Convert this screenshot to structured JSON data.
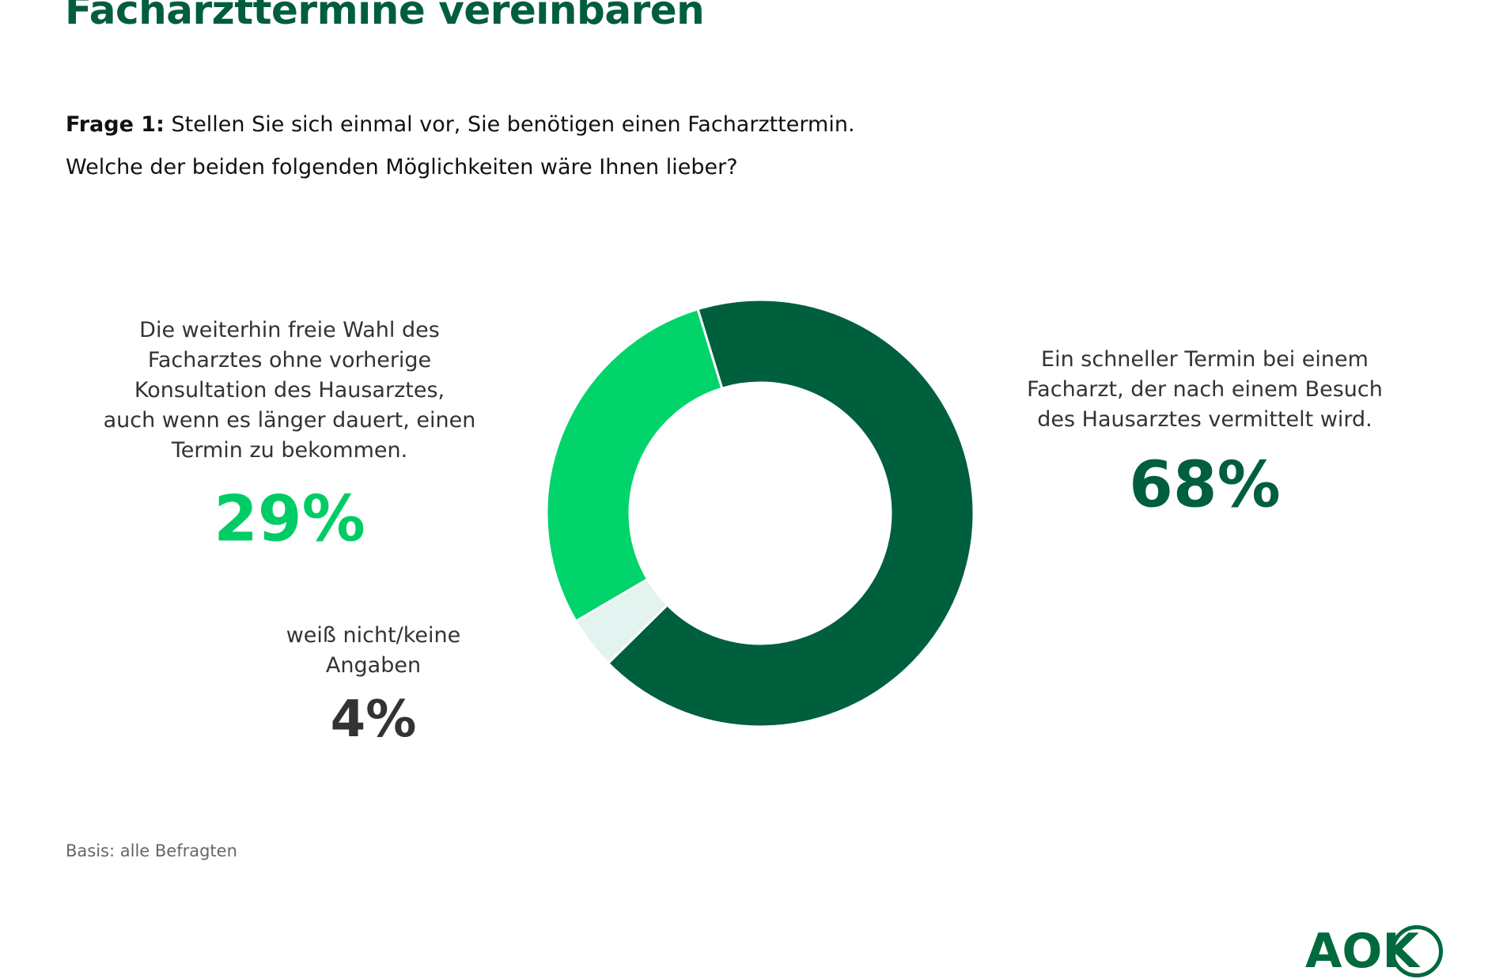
{
  "title": "Facharzttermine vereinbaren",
  "question": {
    "label": "Frage 1:",
    "line1": "Stellen Sie sich einmal vor, Sie benötigen einen Facharzttermin.",
    "line2": "Welche der beiden folgenden Möglichkeiten wäre Ihnen lieber?"
  },
  "footnote": "Basis: alle Befragten",
  "logo": "AOK",
  "chart_data": {
    "type": "pie",
    "variant": "donut",
    "title": "Facharzttermine vereinbaren",
    "slices": [
      {
        "label": "Ein schneller Termin bei einem Facharzt, der nach einem Besuch des Hausarztes vermittelt wird.",
        "lines": [
          "Ein schneller Termin bei einem",
          "Facharzt, der nach einem Besuch",
          "des Hausarztes vermittelt wird."
        ],
        "value": 68,
        "value_label": "68%",
        "color": "#005f3d"
      },
      {
        "label": "weiß nicht/keine Angaben",
        "lines": [
          "weiß nicht/keine",
          "Angaben"
        ],
        "value": 4,
        "value_label": "4%",
        "color": "#e3f3ef"
      },
      {
        "label": "Die weiterhin freie Wahl des Facharztes ohne vorherige Konsultation des Hausarztes, auch wenn es länger dauert, einen Termin zu bekommen.",
        "lines": [
          "Die weiterhin freie Wahl des",
          "Facharztes ohne vorherige",
          "Konsultation des Hausarztes,",
          "auch wenn es länger dauert, einen",
          "Termin zu bekommen."
        ],
        "value": 29,
        "value_label": "29%",
        "color": "#00d46a"
      }
    ]
  }
}
